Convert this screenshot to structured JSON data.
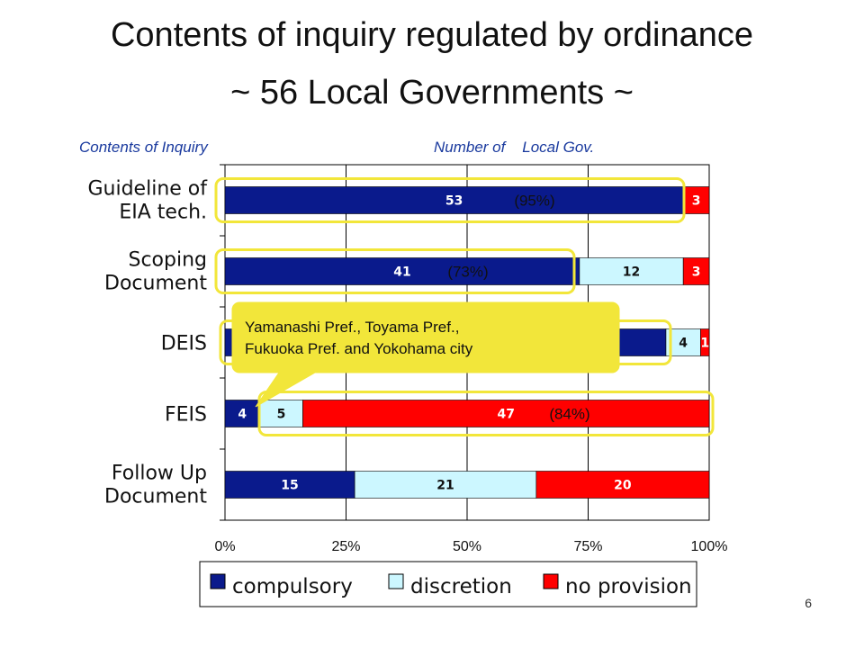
{
  "title": "Contents of inquiry regulated by ordinance",
  "subtitle": "~ 56 Local Governments ~",
  "header_left": "Contents of Inquiry",
  "header_right": "Number of    Local Gov.",
  "colors": {
    "compulsory": "#0a1a8c",
    "discretion": "#ccf7ff",
    "no_provision": "#ff0000",
    "highlight": "#f2e63a",
    "callout_bg": "#f2e63a"
  },
  "callout": {
    "line1": "Yamanashi Pref., Toyama Pref.,",
    "line2": "Fukuoka Pref. and Yokohama city"
  },
  "page_number": "6",
  "chart_data": {
    "type": "bar",
    "orientation": "horizontal",
    "stacked": "percent",
    "categories": [
      [
        "Guideline of",
        "EIA tech."
      ],
      [
        "Scoping",
        "Document"
      ],
      [
        "DEIS"
      ],
      [
        "FEIS"
      ],
      [
        "Follow Up",
        "Document"
      ]
    ],
    "series": [
      {
        "name": "compulsory",
        "values": [
          53,
          41,
          51,
          4,
          15
        ]
      },
      {
        "name": "discretion",
        "values": [
          0,
          12,
          4,
          5,
          21
        ]
      },
      {
        "name": "no provision",
        "values": [
          3,
          3,
          1,
          47,
          20
        ]
      }
    ],
    "x_ticks": [
      "0%",
      "25%",
      "50%",
      "75%",
      "100%"
    ],
    "xlim": [
      0,
      1
    ],
    "grid": true,
    "legend_position": "bottom",
    "annotations": [
      {
        "category_index": 0,
        "text": "(95%)"
      },
      {
        "category_index": 1,
        "text": "(73%)"
      },
      {
        "category_index": 3,
        "text": "(84%)"
      }
    ]
  }
}
